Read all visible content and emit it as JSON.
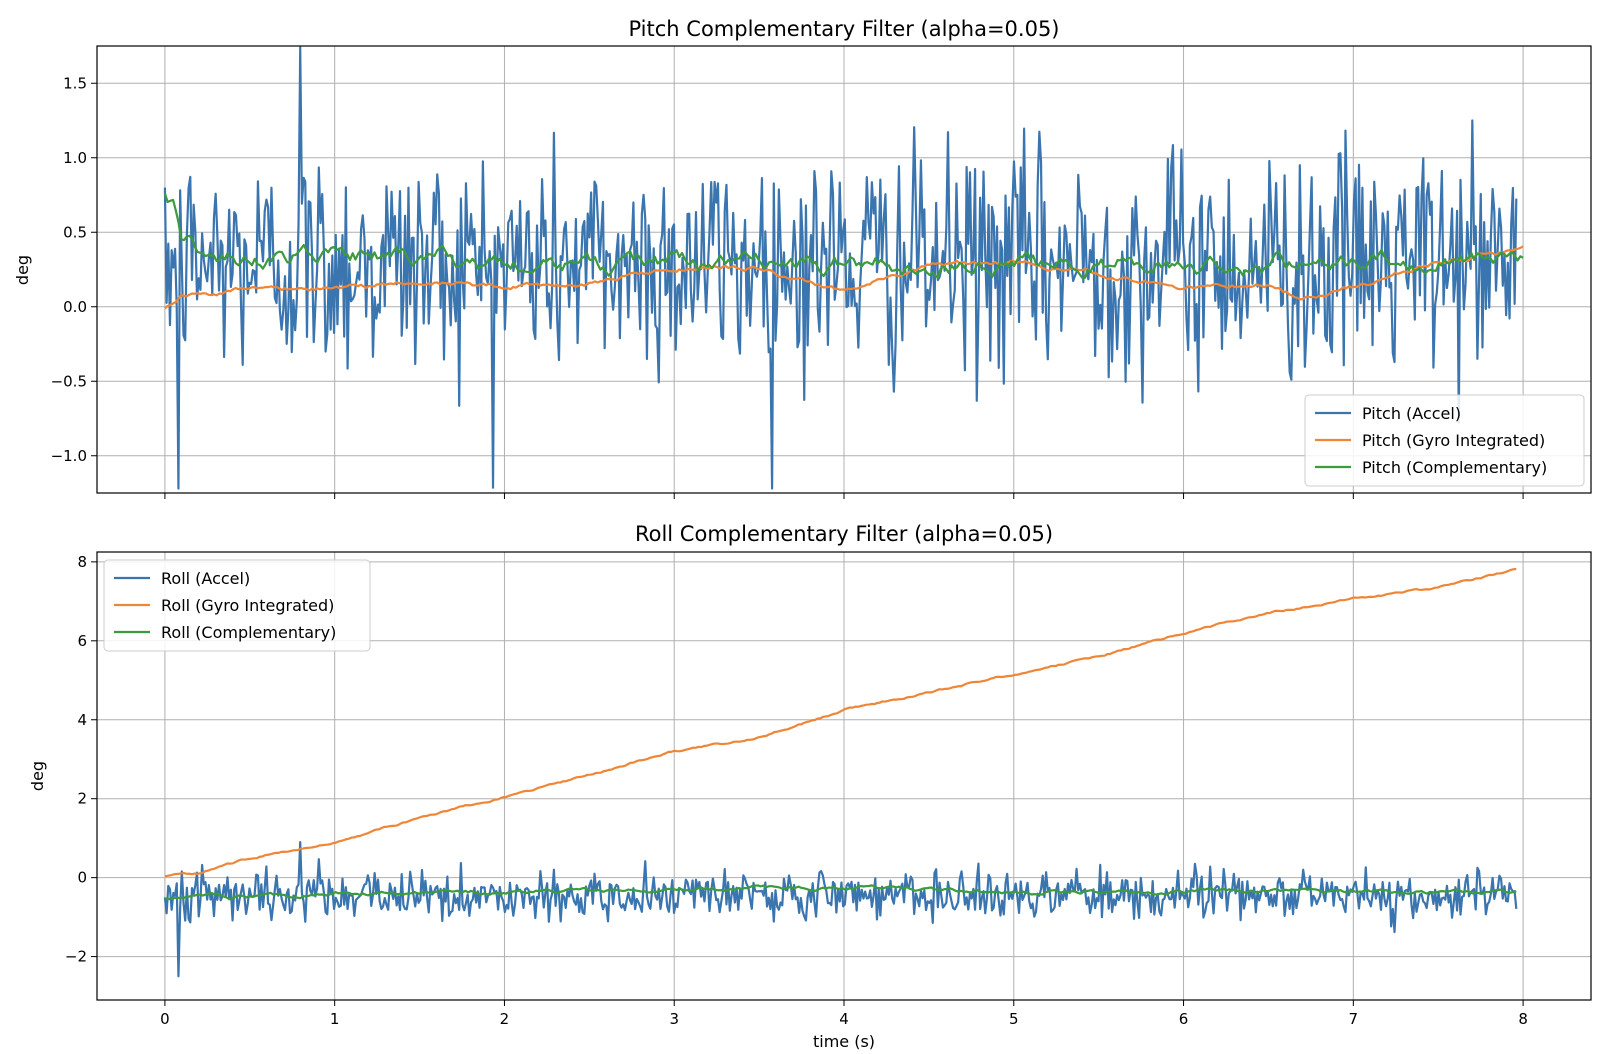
{
  "chart_data": [
    {
      "type": "line",
      "title": "Pitch Complementary Filter (alpha=0.05)",
      "xlabel": "",
      "ylabel": "deg",
      "xlim": [
        -0.4,
        8.4
      ],
      "ylim": [
        -1.25,
        1.75
      ],
      "xticks": [
        0,
        1,
        2,
        3,
        4,
        5,
        6,
        7,
        8
      ],
      "xtick_labels_visible": false,
      "yticks": [
        -1.0,
        -0.5,
        0.0,
        0.5,
        1.0,
        1.5
      ],
      "ytick_labels": [
        "−1.0",
        "−0.5",
        "0.0",
        "0.5",
        "1.0",
        "1.5"
      ],
      "grid": true,
      "legend_position": "lower-right",
      "series": [
        {
          "name": "Pitch (Accel)",
          "color": "#3a75af",
          "kind": "noise",
          "x_range": [
            0,
            7.96
          ],
          "n_points": 800,
          "center": 0.3,
          "amplitude": 0.5,
          "min_observed": -1.22,
          "max_observed": 1.74,
          "initial": 0.8
        },
        {
          "name": "Pitch (Gyro Integrated)",
          "color": "#ef8636",
          "kind": "drift",
          "x": [
            0,
            0.1,
            0.5,
            1.0,
            1.5,
            2.0,
            2.5,
            3.0,
            3.5,
            4.0,
            4.5,
            5.0,
            5.5,
            6.0,
            6.5,
            6.7,
            7.0,
            7.5,
            8.0
          ],
          "values": [
            0.0,
            0.08,
            0.12,
            0.12,
            0.17,
            0.14,
            0.16,
            0.26,
            0.26,
            0.1,
            0.28,
            0.3,
            0.22,
            0.14,
            0.15,
            0.05,
            0.13,
            0.3,
            0.38
          ],
          "wiggle": 0.02
        },
        {
          "name": "Pitch (Complementary)",
          "color": "#3c9b3c",
          "kind": "smoothed",
          "x": [
            0,
            0.05,
            0.1,
            0.3,
            0.6,
            1.0,
            1.5,
            2.0,
            2.5,
            3.0,
            3.5,
            4.0,
            4.5,
            5.0,
            5.5,
            6.0,
            6.5,
            7.0,
            7.5,
            8.0
          ],
          "values": [
            0.8,
            0.7,
            0.45,
            0.35,
            0.32,
            0.33,
            0.34,
            0.28,
            0.3,
            0.3,
            0.28,
            0.3,
            0.3,
            0.28,
            0.27,
            0.28,
            0.3,
            0.3,
            0.3,
            0.35
          ],
          "wiggle": 0.07
        }
      ]
    },
    {
      "type": "line",
      "title": "Roll Complementary Filter (alpha=0.05)",
      "xlabel": "time (s)",
      "ylabel": "deg",
      "xlim": [
        -0.4,
        8.4
      ],
      "ylim": [
        -3.1,
        8.25
      ],
      "xticks": [
        0,
        1,
        2,
        3,
        4,
        5,
        6,
        7,
        8
      ],
      "xtick_labels": [
        "0",
        "1",
        "2",
        "3",
        "4",
        "5",
        "6",
        "7",
        "8"
      ],
      "yticks": [
        -2,
        0,
        2,
        4,
        6,
        8
      ],
      "ytick_labels": [
        "−2",
        "0",
        "2",
        "4",
        "6",
        "8"
      ],
      "grid": true,
      "legend_position": "upper-left",
      "series": [
        {
          "name": "Roll (Accel)",
          "color": "#3a75af",
          "kind": "noise",
          "x_range": [
            0,
            7.96
          ],
          "n_points": 800,
          "center": -0.45,
          "amplitude": 0.4,
          "min_observed": -2.5,
          "max_observed": 0.9,
          "initial": -0.5
        },
        {
          "name": "Roll (Gyro Integrated)",
          "color": "#ef8636",
          "kind": "drift",
          "x": [
            0,
            0.2,
            0.5,
            1.0,
            1.5,
            2.0,
            2.5,
            3.0,
            3.5,
            4.0,
            4.5,
            5.0,
            5.5,
            6.0,
            6.5,
            7.0,
            7.5,
            7.96
          ],
          "values": [
            0.05,
            0.1,
            0.5,
            0.9,
            1.5,
            2.05,
            2.6,
            3.2,
            3.55,
            4.25,
            4.7,
            5.15,
            5.6,
            6.2,
            6.7,
            7.05,
            7.35,
            7.8
          ],
          "wiggle": 0.03
        },
        {
          "name": "Roll (Complementary)",
          "color": "#3c9b3c",
          "kind": "smoothed",
          "x": [
            0,
            0.1,
            0.5,
            1.0,
            2.0,
            3.0,
            4.0,
            5.0,
            6.0,
            7.0,
            7.96
          ],
          "values": [
            -0.5,
            -0.45,
            -0.5,
            -0.4,
            -0.35,
            -0.3,
            -0.25,
            -0.35,
            -0.35,
            -0.35,
            -0.35
          ],
          "wiggle": 0.06
        }
      ]
    }
  ]
}
